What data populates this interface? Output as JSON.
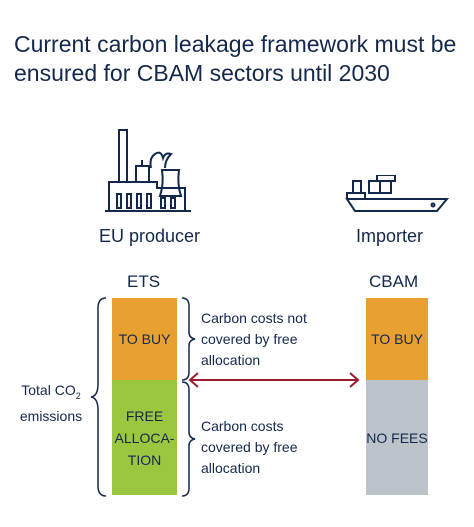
{
  "title": "Current carbon leakage framework must be ensured for CBAM sectors until 2030",
  "producer": {
    "label": "EU producer",
    "icon": "factory-icon"
  },
  "importer": {
    "label": "Importer",
    "icon": "cargo-ship-icon"
  },
  "ets": {
    "label": "ETS",
    "to_buy": "TO BUY",
    "free_allocation_lines": [
      "FREE",
      "ALLOCA-",
      "TION"
    ]
  },
  "cbam": {
    "label": "CBAM",
    "to_buy": "TO BUY",
    "no_fees": "NO FEES"
  },
  "annotations": {
    "not_covered_lines": [
      "Carbon costs not",
      "covered by free",
      "allocation"
    ],
    "covered_lines": [
      "Carbon costs",
      "covered by free",
      "allocation"
    ]
  },
  "total_emissions": {
    "line1": "Total CO",
    "subscript": "2",
    "line2": "emissions"
  },
  "colors": {
    "orange": "#E8A030",
    "green": "#9AC73F",
    "grey": "#BDC3CB",
    "navy": "#14284B",
    "arrow": "#9B1B2F"
  }
}
